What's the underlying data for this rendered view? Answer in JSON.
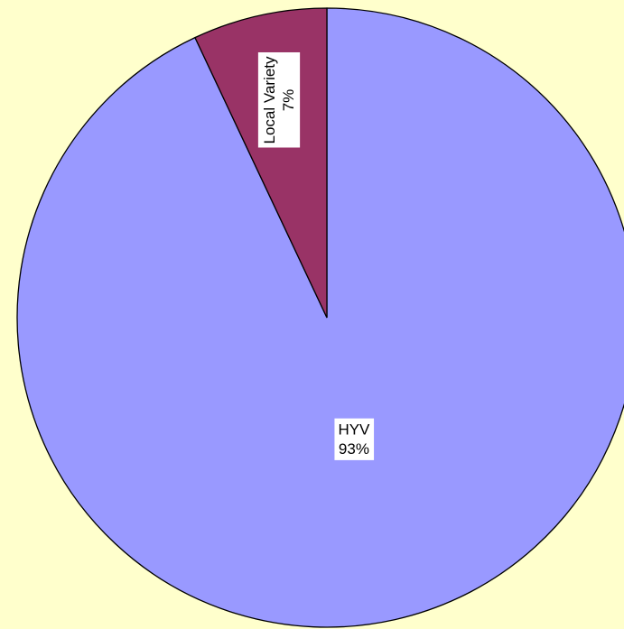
{
  "chart_data": {
    "type": "pie",
    "categories": [
      "HYV",
      "Local Variety"
    ],
    "values": [
      93,
      7
    ],
    "value_labels": [
      "93%",
      "7%"
    ],
    "colors": [
      "#9999ff",
      "#993366"
    ]
  }
}
